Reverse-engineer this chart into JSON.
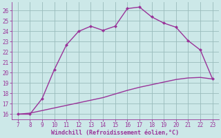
{
  "x": [
    7,
    8,
    9,
    10,
    11,
    12,
    13,
    14,
    15,
    16,
    17,
    18,
    19,
    20,
    21,
    22,
    23
  ],
  "y_top": [
    16.0,
    16.0,
    17.5,
    20.3,
    22.7,
    24.0,
    24.5,
    24.1,
    24.5,
    26.2,
    26.35,
    25.4,
    24.8,
    24.4,
    23.1,
    22.2,
    19.4
  ],
  "y_bottom": [
    16.0,
    16.1,
    16.35,
    16.6,
    16.85,
    17.1,
    17.35,
    17.6,
    17.95,
    18.3,
    18.6,
    18.85,
    19.1,
    19.35,
    19.5,
    19.55,
    19.4
  ],
  "line_color": "#993399",
  "bg_color": "#cce8e8",
  "grid_color": "#99bbbb",
  "xlabel": "Windchill (Refroidissement éolien,°C)",
  "xlabel_color": "#993399",
  "tick_color": "#993399",
  "xlim": [
    6.5,
    23.5
  ],
  "ylim": [
    15.5,
    26.8
  ],
  "xticks": [
    7,
    8,
    9,
    10,
    11,
    12,
    13,
    14,
    15,
    16,
    17,
    18,
    19,
    20,
    21,
    22,
    23
  ],
  "yticks": [
    16,
    17,
    18,
    19,
    20,
    21,
    22,
    23,
    24,
    25,
    26
  ],
  "markersize": 2.5,
  "linewidth": 1.0
}
